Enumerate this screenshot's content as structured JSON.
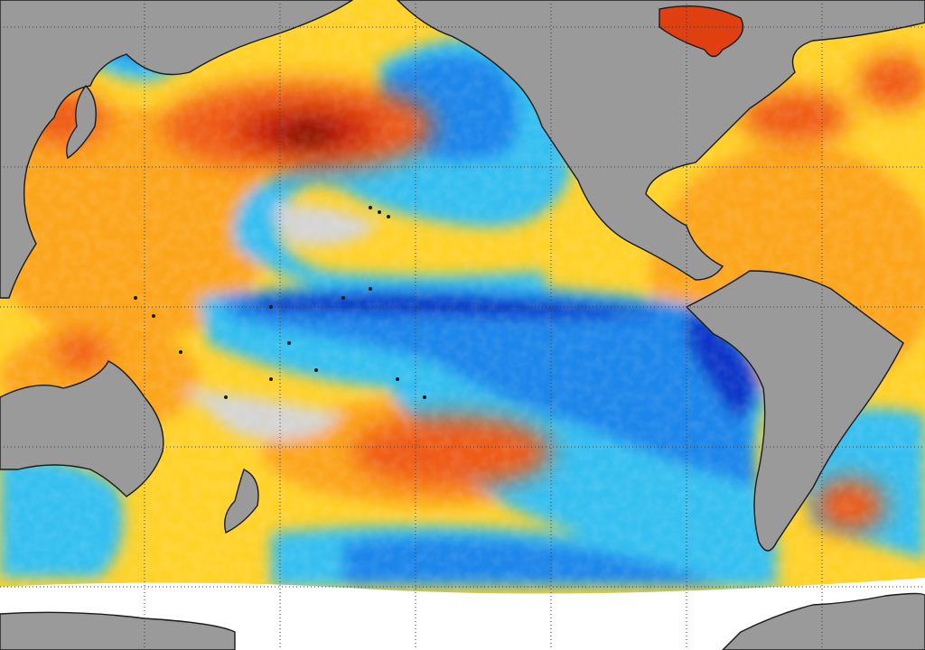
{
  "map": {
    "type": "sea-surface-temperature-anomaly",
    "region": "pacific-ocean",
    "colors": {
      "land": "#9a9a9a",
      "coast": "#1a1a1a",
      "grid": "#3a3a3a",
      "neutral": "#d4d4d4",
      "ice": "#ffffff",
      "cool_light": "#36bff0",
      "cool": "#1f86ea",
      "cool_deep": "#0c34c8",
      "warm_light": "#ffd22a",
      "warm": "#fca51c",
      "warm_strong": "#ef5a16",
      "warm_deep": "#c81d0e",
      "warm_extreme": "#5a0404"
    },
    "gridlines": "dotted",
    "legend": "none",
    "labels": []
  }
}
